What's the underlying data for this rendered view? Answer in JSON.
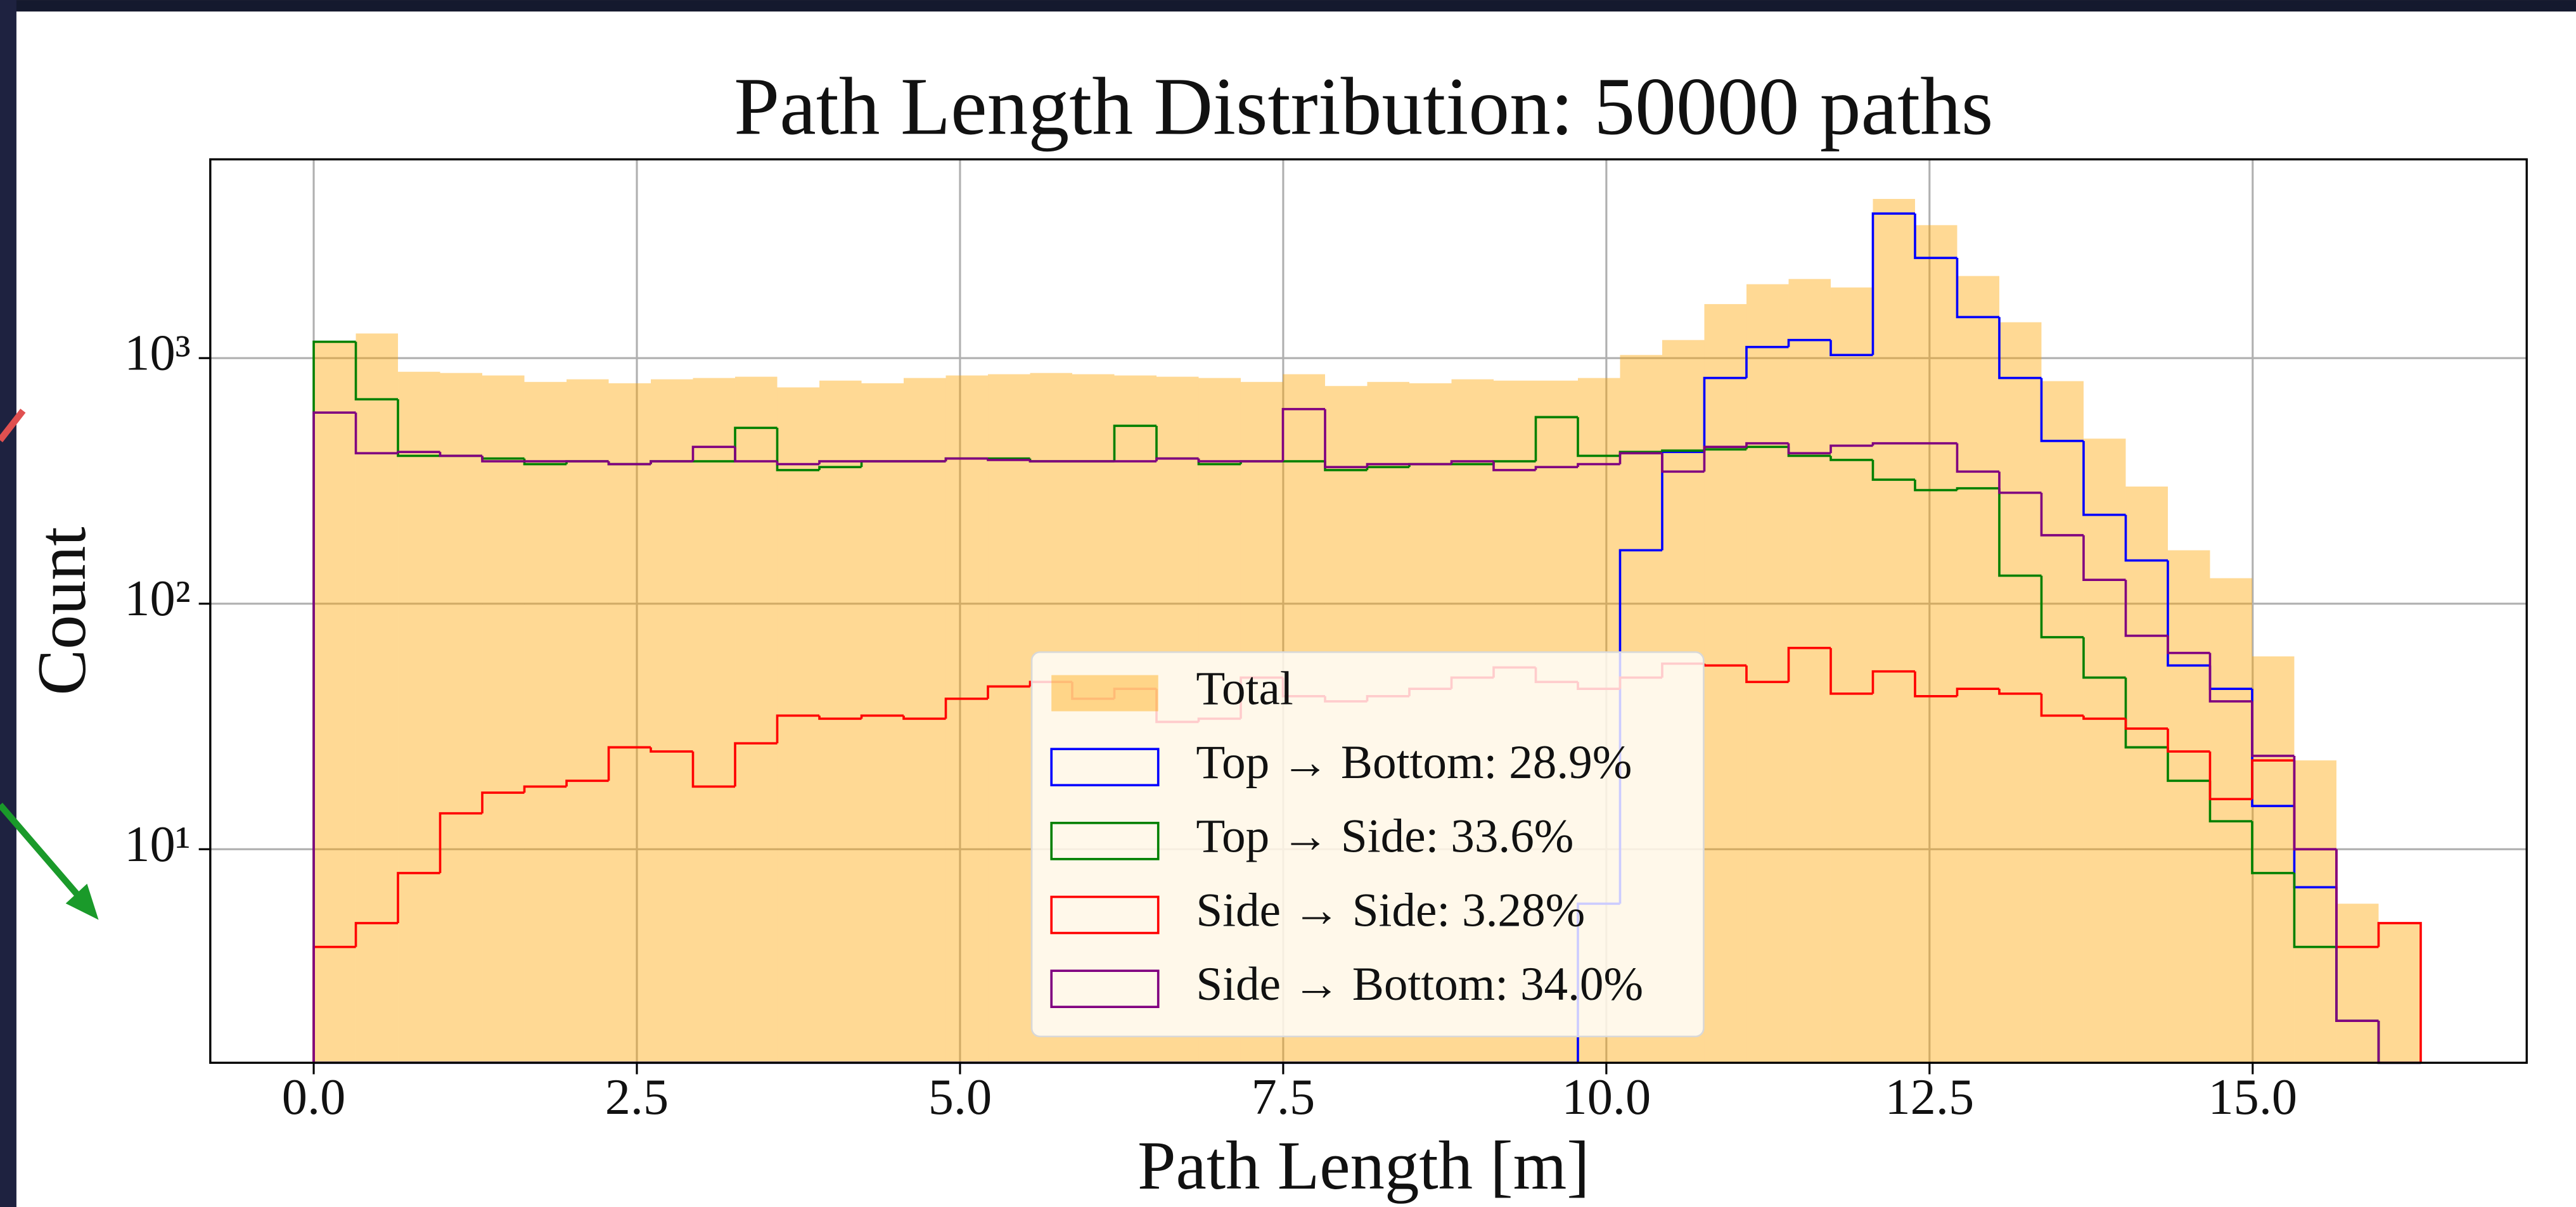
{
  "chart_data": {
    "type": "histogram",
    "title": "Path Length Distribution: 50000 paths",
    "xlabel": "Path Length [m]",
    "ylabel": "Count",
    "log_y": true,
    "grid": true,
    "legend": "lower center",
    "bins": [
      0,
      0.326,
      0.652,
      0.978,
      1.304,
      1.63,
      1.956,
      2.282,
      2.608,
      2.934,
      3.26,
      3.586,
      3.912,
      4.238,
      4.564,
      4.89,
      5.216,
      5.542,
      5.868,
      6.194,
      6.52,
      6.846,
      7.172,
      7.498,
      7.824,
      8.15,
      8.476,
      8.802,
      9.128,
      9.454,
      9.78,
      10.106,
      10.432,
      10.758,
      11.084,
      11.41,
      11.736,
      12.062,
      12.388,
      12.714,
      13.04,
      13.366,
      13.692,
      14.018,
      14.344,
      14.67,
      14.996,
      15.322,
      15.648,
      15.974,
      16.3
    ],
    "series": [
      {
        "name": "Total",
        "color": "#ffa500",
        "style": "filled",
        "values": [
          1166,
          1260,
          880,
          870,
          850,
          800,
          820,
          790,
          820,
          830,
          840,
          760,
          810,
          790,
          830,
          850,
          860,
          870,
          860,
          850,
          840,
          830,
          800,
          860,
          770,
          800,
          790,
          820,
          810,
          810,
          830,
          1030,
          1185,
          1660,
          2000,
          2100,
          1940,
          4450,
          3480,
          2160,
          1400,
          806,
          470,
          300,
          165,
          127,
          61,
          23,
          6,
          5
        ]
      },
      {
        "name": "Top → Bottom: 28.9%",
        "color": "#0000ff",
        "style": "step",
        "values": [
          0,
          0,
          0,
          0,
          0,
          0,
          0,
          0,
          0,
          0,
          0,
          0,
          0,
          0,
          0,
          0,
          0,
          0,
          0,
          0,
          0,
          0,
          0,
          0,
          0,
          0,
          0,
          0,
          0,
          0,
          6,
          165,
          415,
          830,
          1110,
          1185,
          1030,
          3880,
          2560,
          1470,
          830,
          460,
          230,
          150,
          56,
          45,
          15,
          7,
          2,
          0
        ]
      },
      {
        "name": "Top → Side: 33.6%",
        "color": "#008000",
        "style": "step",
        "values": [
          1166,
          680,
          400,
          400,
          390,
          370,
          380,
          370,
          380,
          380,
          520,
          350,
          360,
          380,
          380,
          390,
          390,
          380,
          380,
          530,
          390,
          370,
          380,
          380,
          350,
          360,
          370,
          370,
          380,
          575,
          400,
          415,
          420,
          425,
          435,
          400,
          385,
          320,
          290,
          295,
          130,
          73,
          50,
          26,
          19,
          13,
          8,
          4,
          2,
          0
        ]
      },
      {
        "name": "Side → Side: 3.28%",
        "color": "#ff0000",
        "style": "step",
        "values": [
          4,
          5,
          8,
          14,
          17,
          18,
          19,
          26,
          25,
          18,
          27,
          35,
          34,
          35,
          34,
          41,
          46,
          48,
          41,
          45,
          33,
          34,
          50,
          42,
          40,
          42,
          45,
          50,
          55,
          48,
          45,
          50,
          57,
          56,
          48,
          66,
          43,
          53,
          42,
          45,
          43,
          35,
          34,
          31,
          25,
          16,
          23,
          10,
          4,
          5
        ]
      },
      {
        "name": "Side → Bottom: 34.0%",
        "color": "#800080",
        "style": "step",
        "values": [
          600,
          410,
          415,
          400,
          380,
          380,
          380,
          370,
          380,
          435,
          380,
          370,
          380,
          380,
          380,
          390,
          385,
          380,
          380,
          380,
          390,
          380,
          380,
          620,
          360,
          370,
          370,
          380,
          350,
          360,
          370,
          410,
          345,
          435,
          450,
          410,
          440,
          450,
          450,
          345,
          283,
          190,
          125,
          74,
          63,
          40,
          24,
          10,
          2,
          0
        ]
      }
    ],
    "xlim": [
      -0.8,
      17.12
    ],
    "ylim": [
      1.35,
      6450
    ],
    "xticks": [
      {
        "value": 0,
        "label": "0.0"
      },
      2.5,
      {
        "value": 5,
        "label": "5.0"
      },
      7.5,
      {
        "value": 10,
        "label": "10.0"
      },
      12.5,
      {
        "value": 15,
        "label": "15.0"
      }
    ],
    "yticks": [
      {
        "value": 10,
        "label": "10¹"
      },
      {
        "value": 100,
        "label": "10²"
      },
      {
        "value": 1000,
        "label": "10³"
      }
    ]
  }
}
